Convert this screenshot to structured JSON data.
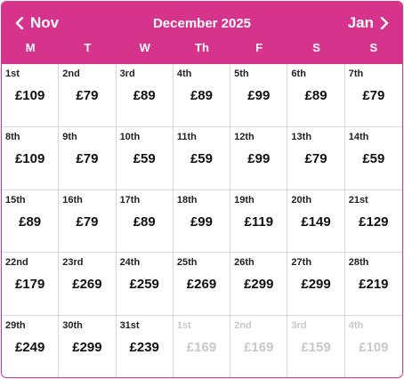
{
  "header": {
    "prev_label": "Nov",
    "next_label": "Jan",
    "title": "December 2025",
    "weekdays": [
      "M",
      "T",
      "W",
      "Th",
      "F",
      "S",
      "S"
    ]
  },
  "colors": {
    "accent": "#d6348c",
    "text": "#111111",
    "muted": "#c8c8c8",
    "grid_line": "#d9d9d9"
  },
  "icons": {
    "prev": "chevron-left-icon",
    "next": "chevron-right-icon"
  },
  "days": [
    {
      "label": "1st",
      "price": "£109",
      "in_month": true
    },
    {
      "label": "2nd",
      "price": "£79",
      "in_month": true
    },
    {
      "label": "3rd",
      "price": "£89",
      "in_month": true
    },
    {
      "label": "4th",
      "price": "£89",
      "in_month": true
    },
    {
      "label": "5th",
      "price": "£99",
      "in_month": true
    },
    {
      "label": "6th",
      "price": "£89",
      "in_month": true
    },
    {
      "label": "7th",
      "price": "£79",
      "in_month": true
    },
    {
      "label": "8th",
      "price": "£109",
      "in_month": true
    },
    {
      "label": "9th",
      "price": "£79",
      "in_month": true
    },
    {
      "label": "10th",
      "price": "£59",
      "in_month": true
    },
    {
      "label": "11th",
      "price": "£59",
      "in_month": true
    },
    {
      "label": "12th",
      "price": "£99",
      "in_month": true
    },
    {
      "label": "13th",
      "price": "£79",
      "in_month": true
    },
    {
      "label": "14th",
      "price": "£59",
      "in_month": true
    },
    {
      "label": "15th",
      "price": "£89",
      "in_month": true
    },
    {
      "label": "16th",
      "price": "£79",
      "in_month": true
    },
    {
      "label": "17th",
      "price": "£89",
      "in_month": true
    },
    {
      "label": "18th",
      "price": "£99",
      "in_month": true
    },
    {
      "label": "19th",
      "price": "£119",
      "in_month": true
    },
    {
      "label": "20th",
      "price": "£149",
      "in_month": true
    },
    {
      "label": "21st",
      "price": "£129",
      "in_month": true
    },
    {
      "label": "22nd",
      "price": "£179",
      "in_month": true
    },
    {
      "label": "23rd",
      "price": "£269",
      "in_month": true
    },
    {
      "label": "24th",
      "price": "£259",
      "in_month": true
    },
    {
      "label": "25th",
      "price": "£269",
      "in_month": true
    },
    {
      "label": "26th",
      "price": "£299",
      "in_month": true
    },
    {
      "label": "27th",
      "price": "£299",
      "in_month": true
    },
    {
      "label": "28th",
      "price": "£219",
      "in_month": true
    },
    {
      "label": "29th",
      "price": "£249",
      "in_month": true
    },
    {
      "label": "30th",
      "price": "£299",
      "in_month": true
    },
    {
      "label": "31st",
      "price": "£239",
      "in_month": true
    },
    {
      "label": "1st",
      "price": "£169",
      "in_month": false
    },
    {
      "label": "2nd",
      "price": "£169",
      "in_month": false
    },
    {
      "label": "3rd",
      "price": "£159",
      "in_month": false
    },
    {
      "label": "4th",
      "price": "£109",
      "in_month": false
    }
  ]
}
